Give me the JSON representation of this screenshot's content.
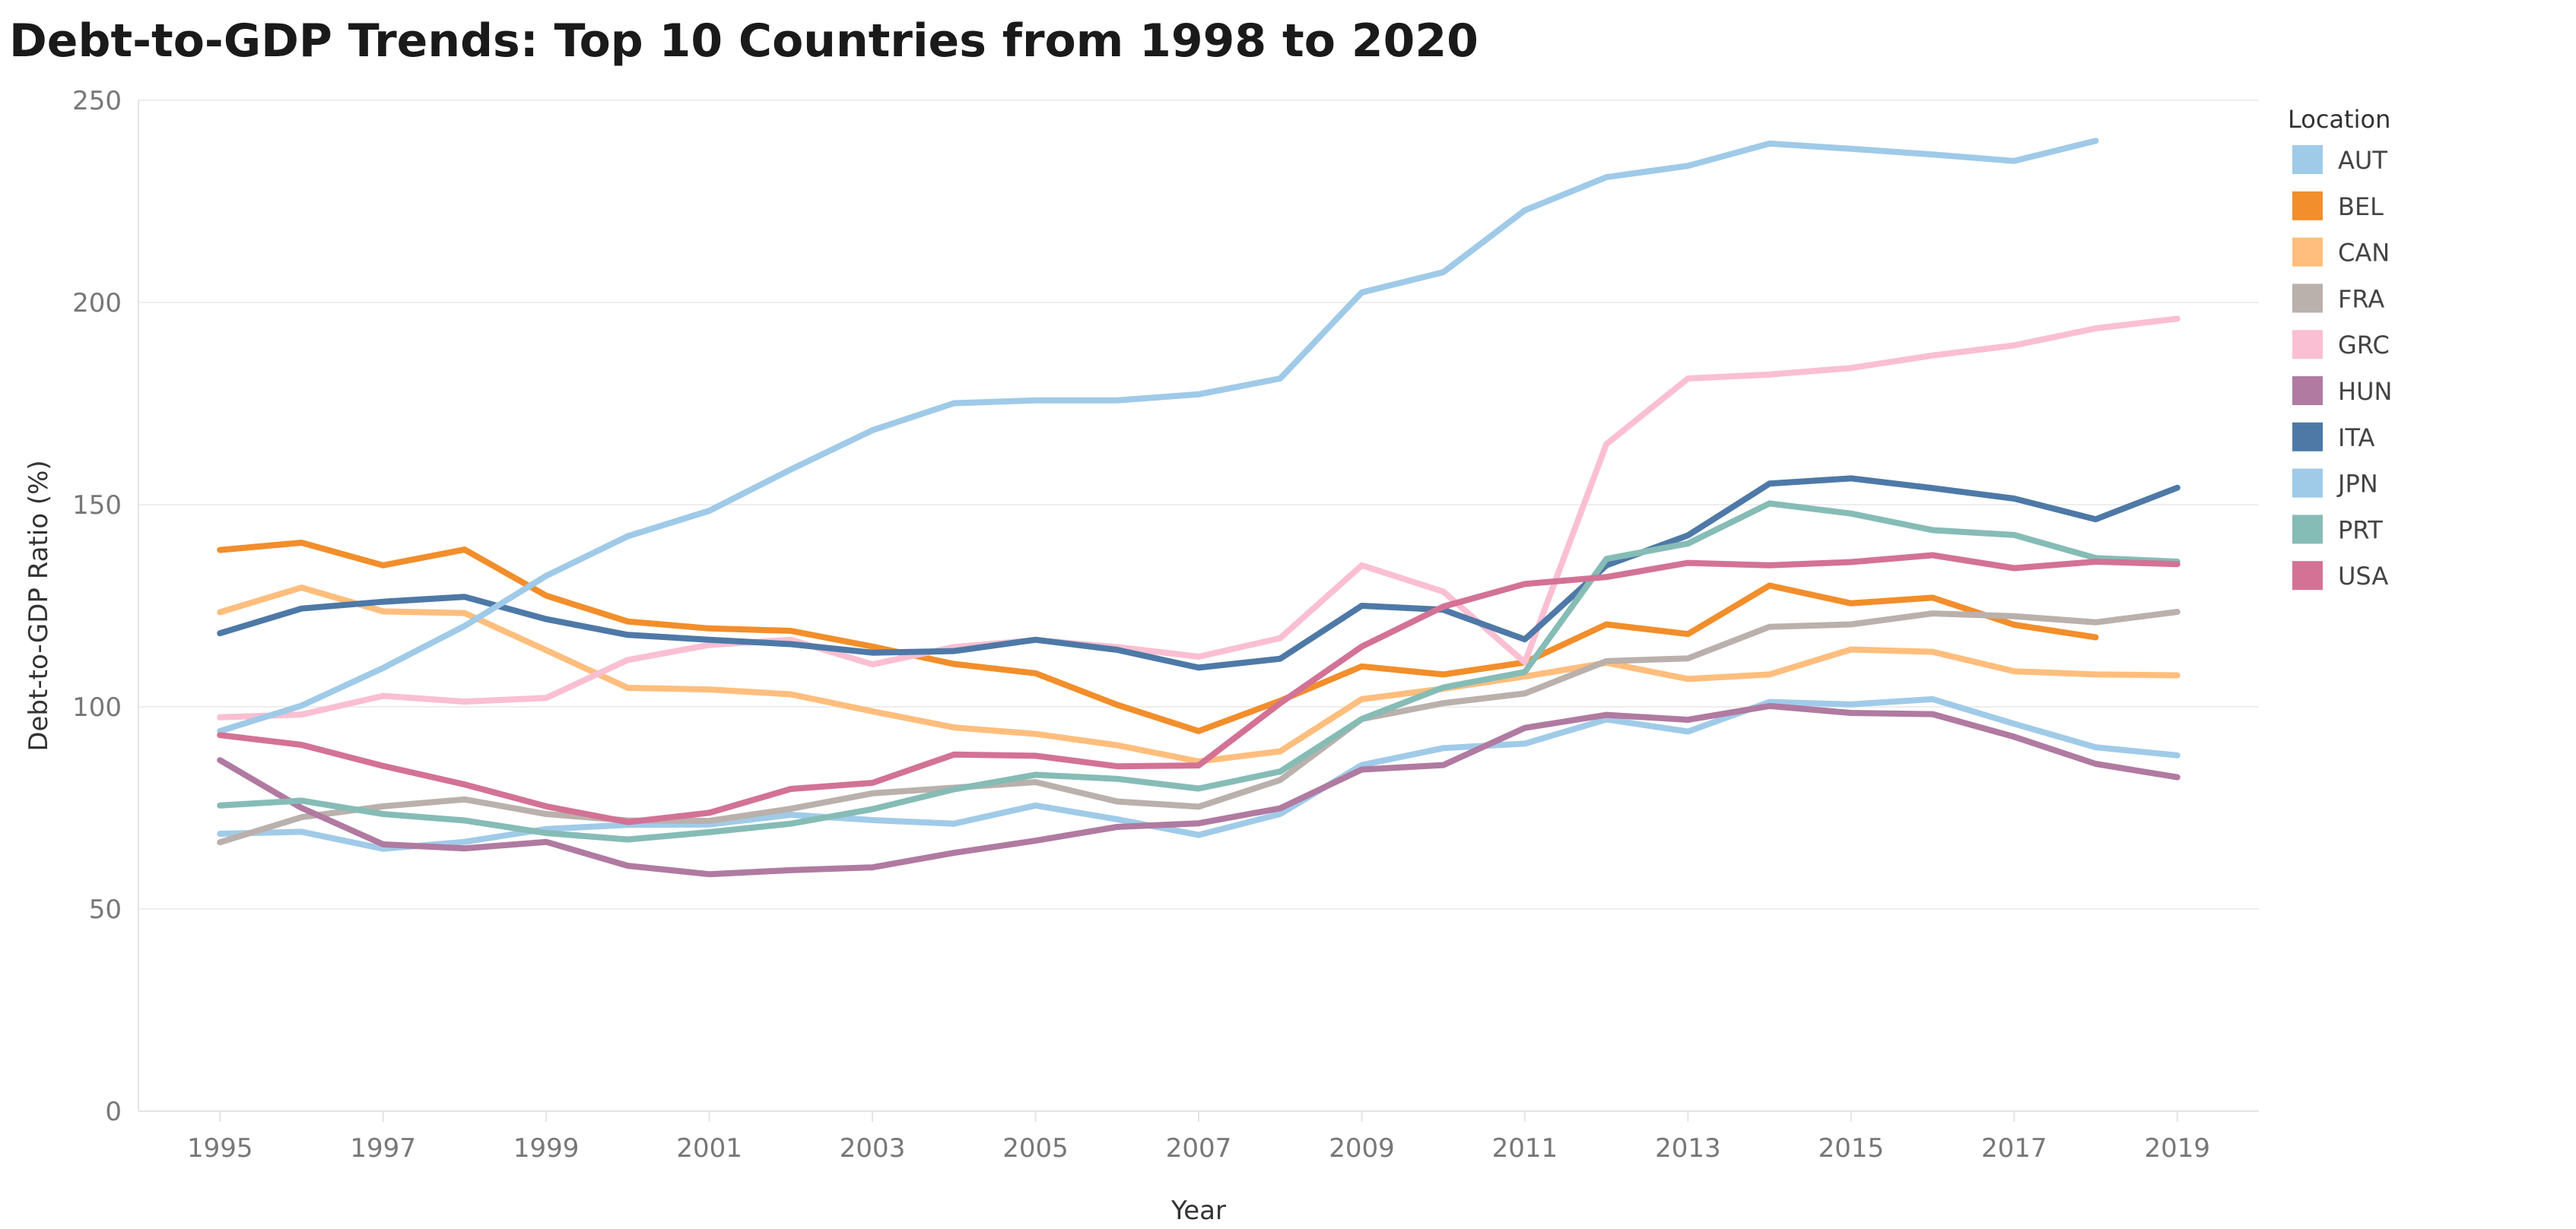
{
  "chart_data": {
    "type": "line",
    "title": "Debt-to-GDP Trends: Top 10 Countries from 1998 to 2020",
    "xlabel": "Year",
    "ylabel": "Debt-to-GDP Ratio (%)",
    "ylim": [
      0,
      250
    ],
    "yticks": [
      0,
      50,
      100,
      150,
      200,
      250
    ],
    "xlim": [
      1994,
      2020
    ],
    "xticks": [
      1995,
      1997,
      1999,
      2001,
      2003,
      2005,
      2007,
      2009,
      2011,
      2013,
      2015,
      2017,
      2019
    ],
    "grid": true,
    "legend_title": "Location",
    "legend_position": "right",
    "series": [
      {
        "name": "AUT",
        "color": "#A0CBE8",
        "x": [
          1995,
          1996,
          1997,
          1998,
          1999,
          2000,
          2001,
          2002,
          2003,
          2004,
          2005,
          2006,
          2007,
          2008,
          2009,
          2010,
          2011,
          2012,
          2013,
          2014,
          2015,
          2016,
          2017,
          2018,
          2019
        ],
        "y": [
          68.6,
          69.1,
          64.9,
          66.6,
          69.8,
          70.8,
          70.9,
          73.3,
          72.0,
          71.1,
          75.6,
          72.2,
          68.3,
          73.5,
          85.6,
          89.8,
          90.9,
          96.9,
          93.9,
          101.2,
          100.6,
          101.9,
          95.8,
          90.0,
          88.0
        ]
      },
      {
        "name": "BEL",
        "color": "#F28E2B",
        "x": [
          1995,
          1996,
          1997,
          1998,
          1999,
          2000,
          2001,
          2002,
          2003,
          2004,
          2005,
          2006,
          2007,
          2008,
          2009,
          2010,
          2011,
          2012,
          2013,
          2014,
          2015,
          2016,
          2017,
          2018
        ],
        "y": [
          138.8,
          140.6,
          135.0,
          138.9,
          127.5,
          121.1,
          119.4,
          118.8,
          114.9,
          110.6,
          108.3,
          100.5,
          94.0,
          101.5,
          110.0,
          108.0,
          111.0,
          120.4,
          118.0,
          130.0,
          125.6,
          127.0,
          120.3,
          117.2
        ]
      },
      {
        "name": "CAN",
        "color": "#FFBE7D",
        "x": [
          1995,
          1996,
          1997,
          1998,
          1999,
          2000,
          2001,
          2002,
          2003,
          2004,
          2005,
          2006,
          2007,
          2008,
          2009,
          2010,
          2011,
          2012,
          2013,
          2014,
          2015,
          2016,
          2017,
          2018,
          2019
        ],
        "y": [
          123.4,
          129.5,
          123.6,
          123.2,
          114.0,
          104.7,
          104.3,
          103.1,
          98.9,
          94.9,
          93.3,
          90.5,
          86.5,
          89.0,
          101.9,
          104.5,
          107.5,
          110.9,
          106.9,
          108.0,
          114.2,
          113.6,
          108.8,
          108.0,
          107.8
        ]
      },
      {
        "name": "FRA",
        "color": "#BAB0AC",
        "x": [
          1995,
          1996,
          1997,
          1998,
          1999,
          2000,
          2001,
          2002,
          2003,
          2004,
          2005,
          2006,
          2007,
          2008,
          2009,
          2010,
          2011,
          2012,
          2013,
          2014,
          2015,
          2016,
          2017,
          2018,
          2019
        ],
        "y": [
          66.5,
          72.7,
          75.4,
          77.1,
          73.5,
          71.9,
          71.8,
          74.8,
          78.6,
          80.0,
          81.4,
          76.6,
          75.3,
          81.9,
          97.0,
          100.9,
          103.3,
          111.3,
          112.0,
          119.8,
          120.4,
          123.1,
          122.4,
          120.9,
          123.5
        ]
      },
      {
        "name": "GRC",
        "color": "#FABFD2",
        "x": [
          1995,
          1996,
          1997,
          1998,
          1999,
          2000,
          2001,
          2002,
          2003,
          2004,
          2005,
          2006,
          2007,
          2008,
          2009,
          2010,
          2011,
          2012,
          2013,
          2014,
          2015,
          2016,
          2017,
          2018,
          2019
        ],
        "y": [
          97.4,
          98.1,
          102.7,
          101.3,
          102.2,
          111.6,
          115.3,
          116.6,
          110.5,
          114.8,
          116.5,
          114.8,
          112.4,
          117.0,
          135.0,
          128.5,
          111.0,
          165.0,
          181.2,
          182.2,
          183.8,
          186.9,
          189.4,
          193.6,
          196.0
        ]
      },
      {
        "name": "HUN",
        "color": "#B07AA1",
        "x": [
          1995,
          1996,
          1997,
          1998,
          1999,
          2000,
          2001,
          2002,
          2003,
          2004,
          2005,
          2006,
          2007,
          2008,
          2009,
          2010,
          2011,
          2012,
          2013,
          2014,
          2015,
          2016,
          2017,
          2018,
          2019
        ],
        "y": [
          86.8,
          75.0,
          66.0,
          65.0,
          66.6,
          60.7,
          58.6,
          59.6,
          60.3,
          63.9,
          66.9,
          70.3,
          71.2,
          74.9,
          84.5,
          85.6,
          94.8,
          98.0,
          96.8,
          100.2,
          98.5,
          98.2,
          92.6,
          85.9,
          82.6
        ]
      },
      {
        "name": "ITA",
        "color": "#4E79A7",
        "x": [
          1995,
          1996,
          1997,
          1998,
          1999,
          2000,
          2001,
          2002,
          2003,
          2004,
          2005,
          2006,
          2007,
          2008,
          2009,
          2010,
          2011,
          2012,
          2013,
          2014,
          2015,
          2016,
          2017,
          2018,
          2019
        ],
        "y": [
          118.2,
          124.3,
          126.0,
          127.2,
          121.7,
          117.8,
          116.6,
          115.5,
          113.4,
          113.8,
          116.6,
          114.1,
          109.7,
          111.9,
          125.0,
          124.0,
          116.7,
          135.0,
          142.4,
          155.2,
          156.5,
          154.1,
          151.5,
          146.4,
          154.2
        ]
      },
      {
        "name": "JPN",
        "color": "#9FCAE8",
        "x": [
          1995,
          1996,
          1997,
          1998,
          1999,
          2000,
          2001,
          2002,
          2003,
          2004,
          2005,
          2006,
          2007,
          2008,
          2009,
          2010,
          2011,
          2012,
          2013,
          2014,
          2015,
          2016,
          2017,
          2018
        ],
        "y": [
          94.0,
          100.3,
          109.6,
          120.0,
          132.4,
          142.2,
          148.5,
          158.7,
          168.4,
          175.1,
          175.8,
          175.8,
          177.3,
          181.2,
          202.5,
          207.5,
          222.8,
          231.0,
          233.8,
          239.3,
          238.0,
          236.6,
          235.0,
          240.0
        ]
      },
      {
        "name": "PRT",
        "color": "#86BCB6",
        "x": [
          1995,
          1996,
          1997,
          1998,
          1999,
          2000,
          2001,
          2002,
          2003,
          2004,
          2005,
          2006,
          2007,
          2008,
          2009,
          2010,
          2011,
          2012,
          2013,
          2014,
          2015,
          2016,
          2017,
          2018,
          2019
        ],
        "y": [
          75.6,
          76.8,
          73.5,
          71.9,
          68.8,
          67.2,
          69.0,
          71.1,
          74.7,
          79.6,
          83.2,
          82.2,
          79.8,
          84.0,
          97.0,
          104.8,
          108.6,
          136.6,
          140.4,
          150.3,
          147.8,
          143.7,
          142.5,
          136.8,
          135.9
        ]
      },
      {
        "name": "USA",
        "color": "#D37295",
        "x": [
          1995,
          1996,
          1997,
          1998,
          1999,
          2000,
          2001,
          2002,
          2003,
          2004,
          2005,
          2006,
          2007,
          2008,
          2009,
          2010,
          2011,
          2012,
          2013,
          2014,
          2015,
          2016,
          2017,
          2018,
          2019
        ],
        "y": [
          93.0,
          90.6,
          85.4,
          80.8,
          75.4,
          71.5,
          73.8,
          79.7,
          81.2,
          88.2,
          87.9,
          85.3,
          85.5,
          100.9,
          114.9,
          124.8,
          130.4,
          132.1,
          135.6,
          135.0,
          135.8,
          137.5,
          134.3,
          135.9,
          135.3
        ]
      }
    ]
  }
}
